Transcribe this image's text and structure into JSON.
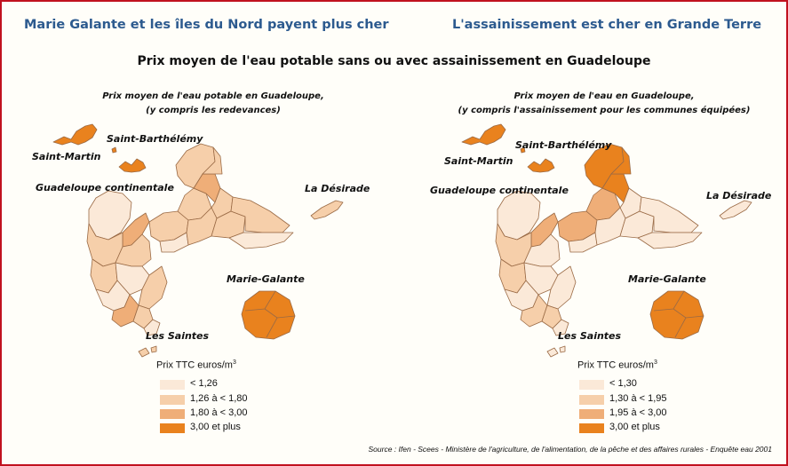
{
  "headlines": {
    "left": "Marie Galante et les îles du Nord payent plus cher",
    "right": "L'assainissement est cher en Grande Terre"
  },
  "main_title": "Prix moyen de l'eau potable sans ou avec assainissement en Guadeloupe",
  "maps": {
    "left": {
      "subtitle_line1": "Prix moyen de l'eau potable en Guadeloupe,",
      "subtitle_line2": "(y compris les redevances)",
      "places": {
        "saint_martin": "Saint-Martin",
        "saint_barthelemy": "Saint-Barthélémy",
        "guadeloupe_continentale": "Guadeloupe continentale",
        "la_desirade": "La Désirade",
        "marie_galante": "Marie-Galante",
        "les_saintes": "Les Saintes"
      },
      "legend": {
        "title": "Prix TTC euros/m",
        "title_sup": "3",
        "classes": [
          {
            "label": "< 1,26",
            "color": "#fbe9d8"
          },
          {
            "label": "1,26 à < 1,80",
            "color": "#f6cfaa"
          },
          {
            "label": "1,80 à < 3,00",
            "color": "#efae78"
          },
          {
            "label": "3,00 et plus",
            "color": "#e9821e"
          }
        ]
      }
    },
    "right": {
      "subtitle_line1": "Prix moyen de l'eau en Guadeloupe,",
      "subtitle_line2": "(y compris l'assainissement pour les communes équipées)",
      "places": {
        "saint_martin": "Saint-Martin",
        "saint_barthelemy": "Saint-Barthélémy",
        "guadeloupe_continentale": "Guadeloupe continentale",
        "la_desirade": "La Désirade",
        "marie_galante": "Marie-Galante",
        "les_saintes": "Les Saintes"
      },
      "legend": {
        "title": "Prix TTC euros/m",
        "title_sup": "3",
        "classes": [
          {
            "label": "< 1,30",
            "color": "#fbe9d8"
          },
          {
            "label": "1,30 à < 1,95",
            "color": "#f6cfaa"
          },
          {
            "label": "1,95 à < 3,00",
            "color": "#efae78"
          },
          {
            "label": "3,00 et plus",
            "color": "#e9821e"
          }
        ]
      }
    }
  },
  "source": "Source : Ifen - Scees - Ministère de l'agriculture, de l'alimentation, de la pêche et des affaires rurales - Enquête eau 2001",
  "colors": {
    "frame": "#c1121f",
    "headline": "#2c5a8f",
    "outline": "#9a6a45"
  }
}
